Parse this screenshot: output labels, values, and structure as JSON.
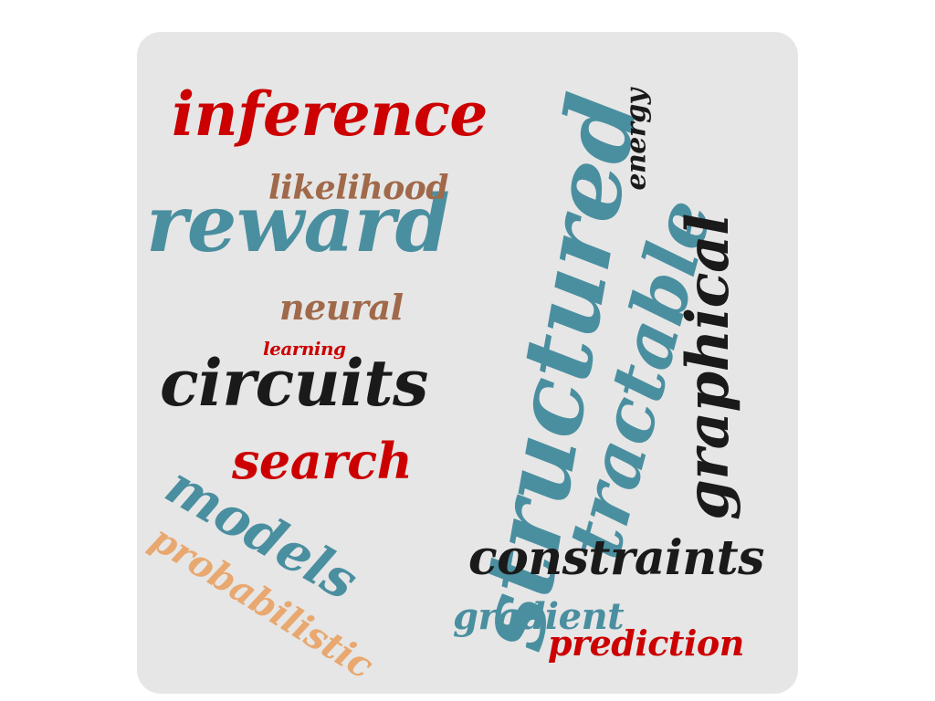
{
  "card": {
    "background": "#e6e6e6"
  },
  "colors": {
    "red": "#cc0000",
    "teal": "#4a8fa0",
    "black": "#1a1a1a",
    "brown": "#a0694a",
    "tan": "#e8a870"
  },
  "words": {
    "inference": {
      "text": "inference",
      "color": "#cc0000"
    },
    "reward": {
      "text": "reward",
      "color": "#4a8fa0"
    },
    "likelihood": {
      "text": "likelihood",
      "color": "#a0694a"
    },
    "structured": {
      "text": "structured",
      "color": "#4a8fa0"
    },
    "tractable": {
      "text": "tractable",
      "color": "#4a8fa0"
    },
    "energy": {
      "text": "energy",
      "color": "#1a1a1a"
    },
    "graphical": {
      "text": "graphical",
      "color": "#1a1a1a"
    },
    "neural": {
      "text": "neural",
      "color": "#a0694a"
    },
    "learning": {
      "text": "learning",
      "color": "#cc0000"
    },
    "circuits": {
      "text": "circuits",
      "color": "#1a1a1a"
    },
    "search": {
      "text": "search",
      "color": "#cc0000"
    },
    "models": {
      "text": "models",
      "color": "#4a8fa0"
    },
    "probabilistic": {
      "text": "probabilistic",
      "color": "#e8a870"
    },
    "constraints": {
      "text": "constraints",
      "color": "#1a1a1a"
    },
    "gradient": {
      "text": "gradient",
      "color": "#4a8fa0"
    },
    "prediction": {
      "text": "prediction",
      "color": "#cc0000"
    }
  }
}
